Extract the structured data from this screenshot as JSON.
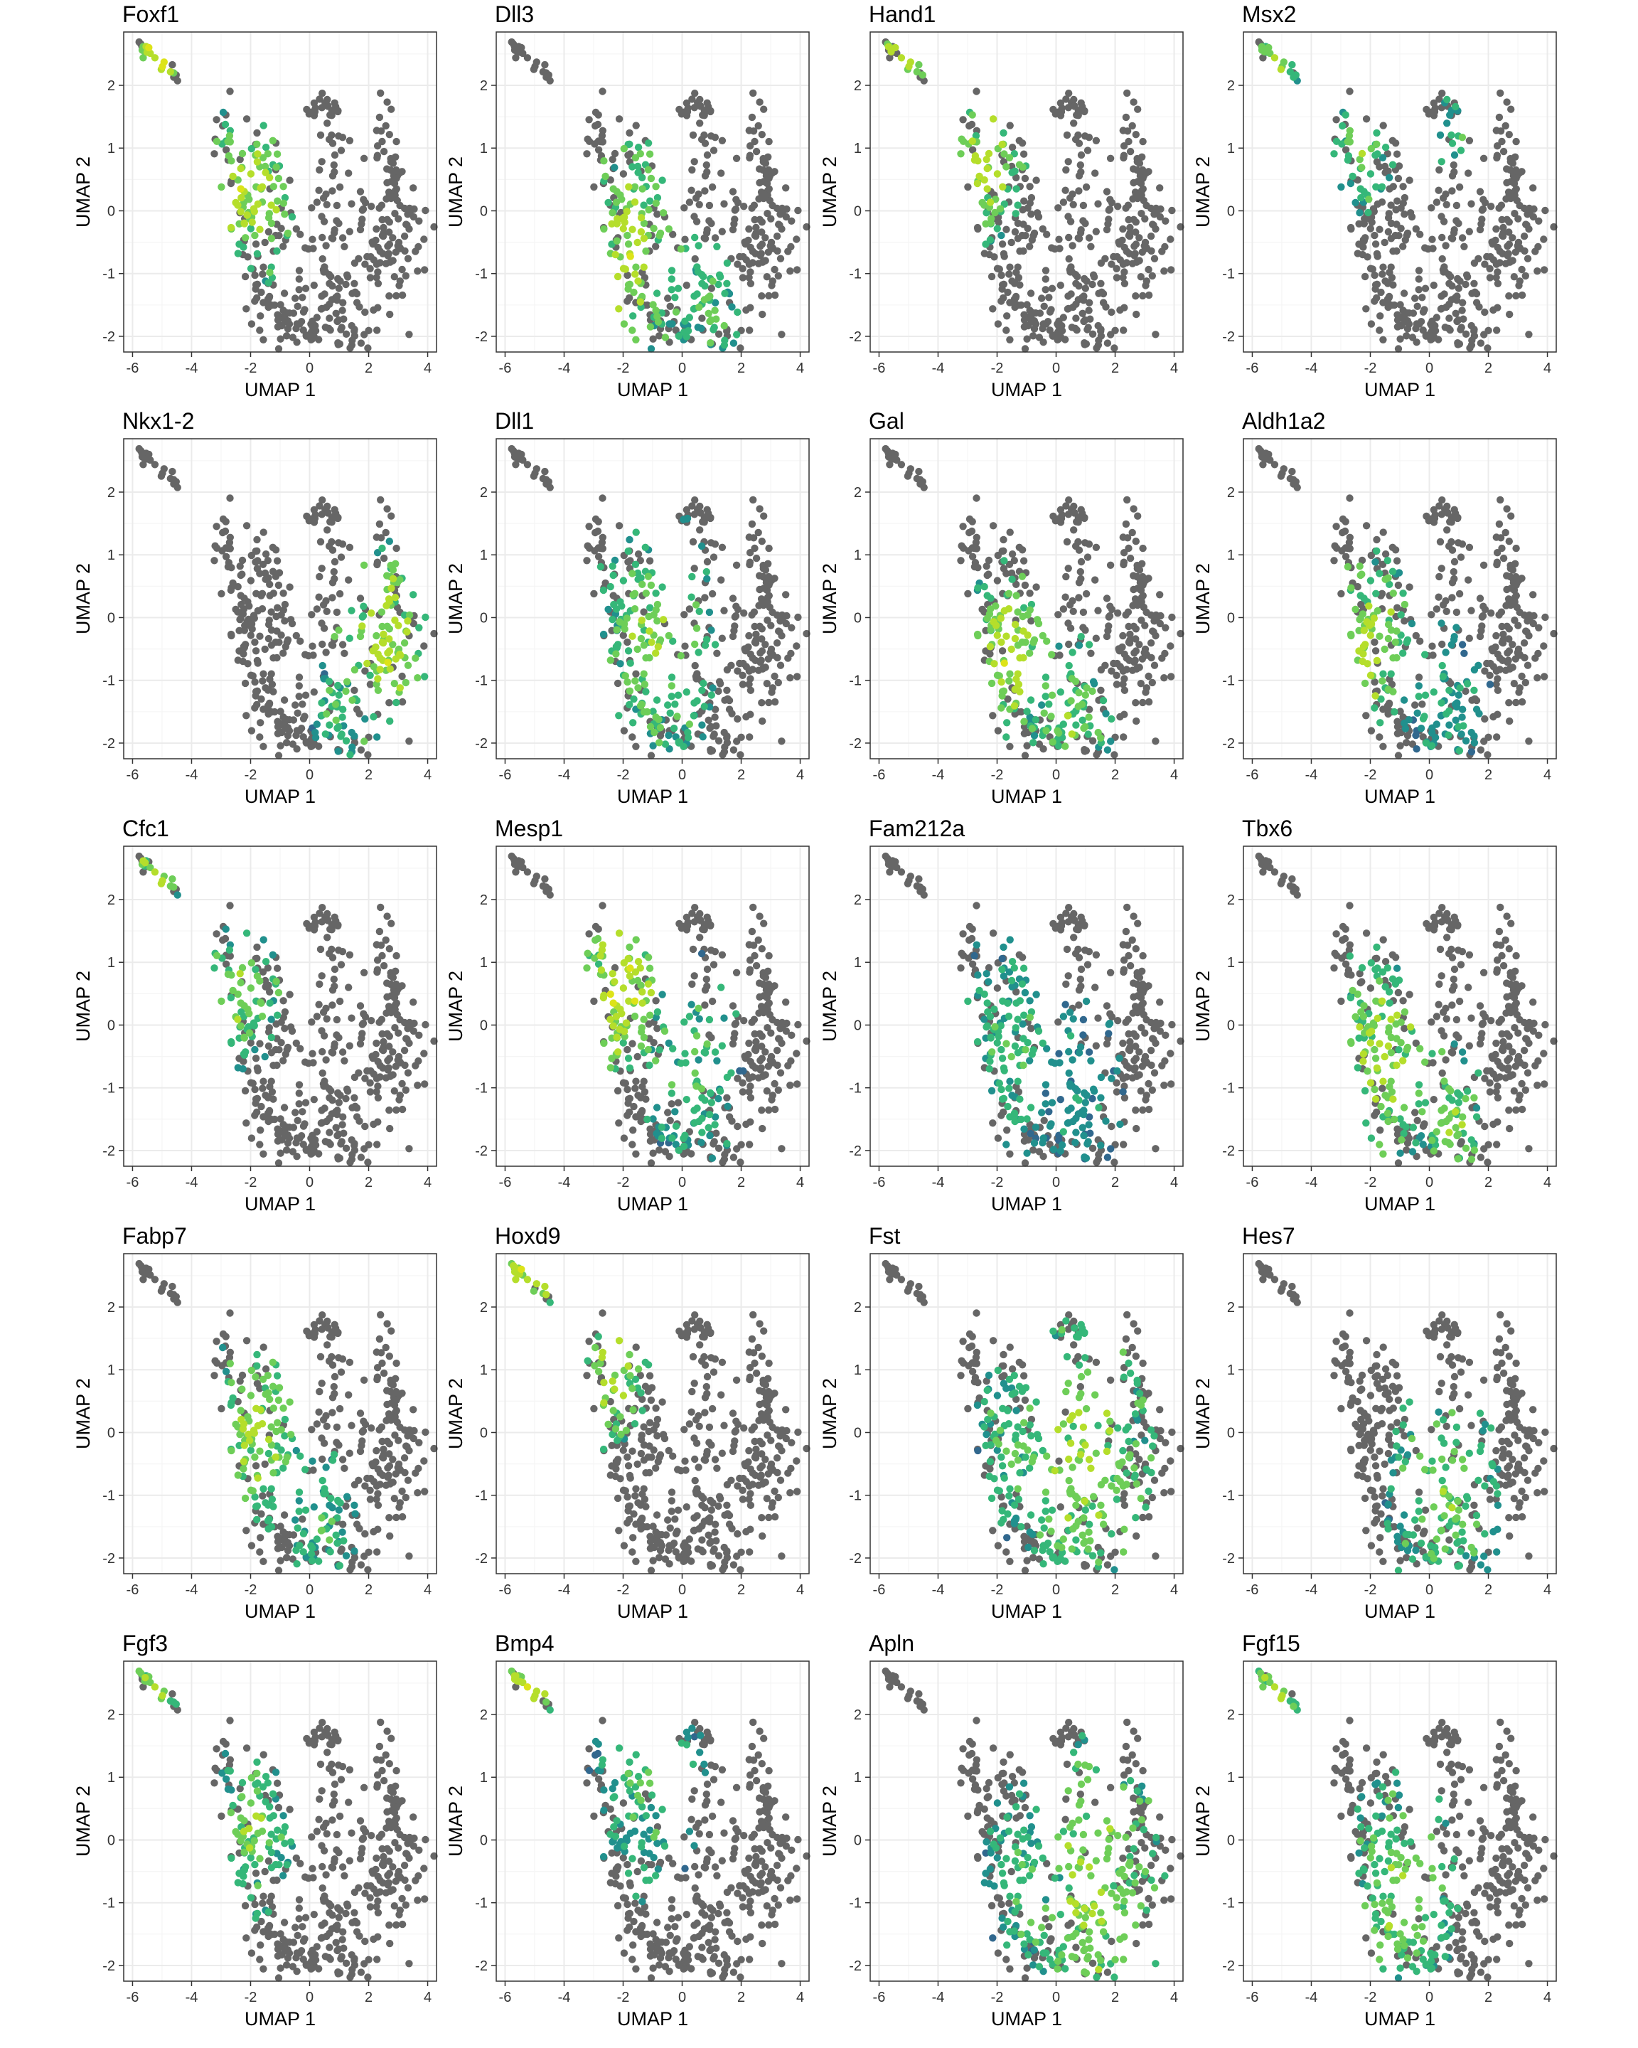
{
  "figure": {
    "x_axis_title": "UMAP 1",
    "y_axis_title": "UMAP 2",
    "x_ticks": [
      -6,
      -4,
      -2,
      0,
      2,
      4
    ],
    "y_ticks": [
      -2,
      -1,
      0,
      1,
      2
    ],
    "xlim": [
      -6.3,
      4.3
    ],
    "ylim": [
      -2.25,
      2.85
    ],
    "colors": {
      "unexpressed": "#666666",
      "palette": [
        "#440154",
        "#31688e",
        "#21908d",
        "#35b779",
        "#6ece58",
        "#b5de2b",
        "#dde318"
      ],
      "grid_major": "#ebebeb",
      "grid_minor": "#f5f5f5",
      "panel_border": "#333333"
    }
  },
  "chart_data": [
    {
      "type": "scatter",
      "title": "Foxf1",
      "xlabel": "UMAP 1",
      "ylabel": "UMAP 2",
      "xlim": [
        -6.3,
        4.3
      ],
      "ylim": [
        -2.25,
        2.85
      ],
      "grid": true,
      "legend": "none",
      "expression_regions": [
        {
          "x": -2.0,
          "y": 0.3,
          "r": 1.6,
          "level": 0.85
        },
        {
          "x": -5.2,
          "y": 2.4,
          "r": 1.0,
          "level": 0.95
        }
      ]
    },
    {
      "type": "scatter",
      "title": "Dll3",
      "xlabel": "UMAP 1",
      "ylabel": "UMAP 2",
      "xlim": [
        -6.3,
        4.3
      ],
      "ylim": [
        -2.25,
        2.85
      ],
      "grid": true,
      "legend": "none",
      "expression_regions": [
        {
          "x": -1.6,
          "y": -0.6,
          "r": 1.8,
          "level": 0.85
        },
        {
          "x": 0.8,
          "y": -1.5,
          "r": 1.2,
          "level": 0.6
        }
      ]
    },
    {
      "type": "scatter",
      "title": "Hand1",
      "xlabel": "UMAP 1",
      "ylabel": "UMAP 2",
      "xlim": [
        -6.3,
        4.3
      ],
      "ylim": [
        -2.25,
        2.85
      ],
      "grid": true,
      "legend": "none",
      "expression_regions": [
        {
          "x": -2.3,
          "y": 0.8,
          "r": 1.4,
          "level": 0.85
        },
        {
          "x": -5.2,
          "y": 2.4,
          "r": 1.0,
          "level": 0.92
        }
      ]
    },
    {
      "type": "scatter",
      "title": "Msx2",
      "xlabel": "UMAP 1",
      "ylabel": "UMAP 2",
      "xlim": [
        -6.3,
        4.3
      ],
      "ylim": [
        -2.25,
        2.85
      ],
      "grid": true,
      "legend": "none",
      "expression_regions": [
        {
          "x": -2.3,
          "y": 1.0,
          "r": 1.1,
          "level": 0.7
        },
        {
          "x": -5.2,
          "y": 2.4,
          "r": 1.0,
          "level": 0.75
        },
        {
          "x": 0.9,
          "y": 1.2,
          "r": 0.8,
          "level": 0.55
        }
      ]
    },
    {
      "type": "scatter",
      "title": "Nkx1-2",
      "xlabel": "UMAP 1",
      "ylabel": "UMAP 2",
      "xlim": [
        -6.3,
        4.3
      ],
      "ylim": [
        -2.25,
        2.85
      ],
      "grid": true,
      "legend": "none",
      "expression_regions": [
        {
          "x": 2.6,
          "y": -0.4,
          "r": 1.8,
          "level": 0.85
        },
        {
          "x": 1.0,
          "y": -1.5,
          "r": 1.0,
          "level": 0.6
        }
      ]
    },
    {
      "type": "scatter",
      "title": "Dll1",
      "xlabel": "UMAP 1",
      "ylabel": "UMAP 2",
      "xlim": [
        -6.3,
        4.3
      ],
      "ylim": [
        -2.25,
        2.85
      ],
      "grid": true,
      "legend": "none",
      "expression_regions": [
        {
          "x": -1.0,
          "y": -0.5,
          "r": 2.4,
          "level": 0.7
        }
      ]
    },
    {
      "type": "scatter",
      "title": "Gal",
      "xlabel": "UMAP 1",
      "ylabel": "UMAP 2",
      "xlim": [
        -6.3,
        4.3
      ],
      "ylim": [
        -2.25,
        2.85
      ],
      "grid": true,
      "legend": "none",
      "expression_regions": [
        {
          "x": -1.6,
          "y": -0.6,
          "r": 1.6,
          "level": 0.85
        },
        {
          "x": 0.5,
          "y": -1.6,
          "r": 1.4,
          "level": 0.7
        }
      ]
    },
    {
      "type": "scatter",
      "title": "Aldh1a2",
      "xlabel": "UMAP 1",
      "ylabel": "UMAP 2",
      "xlim": [
        -6.3,
        4.3
      ],
      "ylim": [
        -2.25,
        2.85
      ],
      "grid": true,
      "legend": "none",
      "expression_regions": [
        {
          "x": -2.0,
          "y": -0.4,
          "r": 1.5,
          "level": 0.85
        },
        {
          "x": 0.6,
          "y": -1.4,
          "r": 1.5,
          "level": 0.45
        }
      ]
    },
    {
      "type": "scatter",
      "title": "Cfc1",
      "xlabel": "UMAP 1",
      "ylabel": "UMAP 2",
      "xlim": [
        -6.3,
        4.3
      ],
      "ylim": [
        -2.25,
        2.85
      ],
      "grid": true,
      "legend": "none",
      "expression_regions": [
        {
          "x": -2.2,
          "y": 0.5,
          "r": 1.3,
          "level": 0.75
        },
        {
          "x": -5.2,
          "y": 2.4,
          "r": 1.0,
          "level": 0.85
        }
      ]
    },
    {
      "type": "scatter",
      "title": "Mesp1",
      "xlabel": "UMAP 1",
      "ylabel": "UMAP 2",
      "xlim": [
        -6.3,
        4.3
      ],
      "ylim": [
        -2.25,
        2.85
      ],
      "grid": true,
      "legend": "none",
      "expression_regions": [
        {
          "x": -2.0,
          "y": 0.6,
          "r": 1.7,
          "level": 0.92
        },
        {
          "x": 0.3,
          "y": -0.6,
          "r": 1.8,
          "level": 0.6
        }
      ]
    },
    {
      "type": "scatter",
      "title": "Fam212a",
      "xlabel": "UMAP 1",
      "ylabel": "UMAP 2",
      "xlim": [
        -6.3,
        4.3
      ],
      "ylim": [
        -2.25,
        2.85
      ],
      "grid": true,
      "legend": "none",
      "expression_regions": [
        {
          "x": -1.5,
          "y": -0.3,
          "r": 2.0,
          "level": 0.55
        },
        {
          "x": 0.8,
          "y": -1.0,
          "r": 1.5,
          "level": 0.4
        }
      ]
    },
    {
      "type": "scatter",
      "title": "Tbx6",
      "xlabel": "UMAP 1",
      "ylabel": "UMAP 2",
      "xlim": [
        -6.3,
        4.3
      ],
      "ylim": [
        -2.25,
        2.85
      ],
      "grid": true,
      "legend": "none",
      "expression_regions": [
        {
          "x": -1.5,
          "y": -0.5,
          "r": 2.0,
          "level": 0.8
        },
        {
          "x": 0.8,
          "y": -1.5,
          "r": 1.2,
          "level": 0.7
        }
      ]
    },
    {
      "type": "scatter",
      "title": "Fabp7",
      "xlabel": "UMAP 1",
      "ylabel": "UMAP 2",
      "xlim": [
        -6.3,
        4.3
      ],
      "ylim": [
        -2.25,
        2.85
      ],
      "grid": true,
      "legend": "none",
      "expression_regions": [
        {
          "x": -1.8,
          "y": 0.0,
          "r": 1.8,
          "level": 0.78
        },
        {
          "x": 0.5,
          "y": -1.5,
          "r": 1.2,
          "level": 0.55
        }
      ]
    },
    {
      "type": "scatter",
      "title": "Hoxd9",
      "xlabel": "UMAP 1",
      "ylabel": "UMAP 2",
      "xlim": [
        -6.3,
        4.3
      ],
      "ylim": [
        -2.25,
        2.85
      ],
      "grid": true,
      "legend": "none",
      "expression_regions": [
        {
          "x": -2.4,
          "y": 1.0,
          "r": 1.3,
          "level": 0.85
        },
        {
          "x": -5.2,
          "y": 2.4,
          "r": 1.0,
          "level": 0.92
        }
      ]
    },
    {
      "type": "scatter",
      "title": "Fst",
      "xlabel": "UMAP 1",
      "ylabel": "UMAP 2",
      "xlim": [
        -6.3,
        4.3
      ],
      "ylim": [
        -2.25,
        2.85
      ],
      "grid": true,
      "legend": "none",
      "expression_regions": [
        {
          "x": 1.0,
          "y": -0.5,
          "r": 2.4,
          "level": 0.8
        },
        {
          "x": -1.5,
          "y": -0.2,
          "r": 1.5,
          "level": 0.6
        }
      ]
    },
    {
      "type": "scatter",
      "title": "Hes7",
      "xlabel": "UMAP 1",
      "ylabel": "UMAP 2",
      "xlim": [
        -6.3,
        4.3
      ],
      "ylim": [
        -2.25,
        2.85
      ],
      "grid": true,
      "legend": "none",
      "expression_regions": [
        {
          "x": 0.5,
          "y": -1.0,
          "r": 2.0,
          "level": 0.68
        }
      ]
    },
    {
      "type": "scatter",
      "title": "Fgf3",
      "xlabel": "UMAP 1",
      "ylabel": "UMAP 2",
      "xlim": [
        -6.3,
        4.3
      ],
      "ylim": [
        -2.25,
        2.85
      ],
      "grid": true,
      "legend": "none",
      "expression_regions": [
        {
          "x": -2.0,
          "y": 0.2,
          "r": 1.5,
          "level": 0.7
        },
        {
          "x": -5.2,
          "y": 2.4,
          "r": 1.0,
          "level": 0.8
        }
      ]
    },
    {
      "type": "scatter",
      "title": "Bmp4",
      "xlabel": "UMAP 1",
      "ylabel": "UMAP 2",
      "xlim": [
        -6.3,
        4.3
      ],
      "ylim": [
        -2.25,
        2.85
      ],
      "grid": true,
      "legend": "none",
      "expression_regions": [
        {
          "x": -1.2,
          "y": 1.0,
          "r": 2.0,
          "level": 0.6
        },
        {
          "x": -5.2,
          "y": 2.4,
          "r": 1.0,
          "level": 0.9
        }
      ]
    },
    {
      "type": "scatter",
      "title": "Apln",
      "xlabel": "UMAP 1",
      "ylabel": "UMAP 2",
      "xlim": [
        -6.3,
        4.3
      ],
      "ylim": [
        -2.25,
        2.85
      ],
      "grid": true,
      "legend": "none",
      "expression_regions": [
        {
          "x": 1.2,
          "y": -0.8,
          "r": 2.5,
          "level": 0.8
        },
        {
          "x": -1.2,
          "y": -0.5,
          "r": 1.5,
          "level": 0.55
        }
      ]
    },
    {
      "type": "scatter",
      "title": "Fgf15",
      "xlabel": "UMAP 1",
      "ylabel": "UMAP 2",
      "xlim": [
        -6.3,
        4.3
      ],
      "ylim": [
        -2.25,
        2.85
      ],
      "grid": true,
      "legend": "none",
      "expression_regions": [
        {
          "x": -1.0,
          "y": -0.8,
          "r": 2.0,
          "level": 0.75
        },
        {
          "x": -5.2,
          "y": 2.4,
          "r": 1.0,
          "level": 0.8
        }
      ]
    }
  ]
}
